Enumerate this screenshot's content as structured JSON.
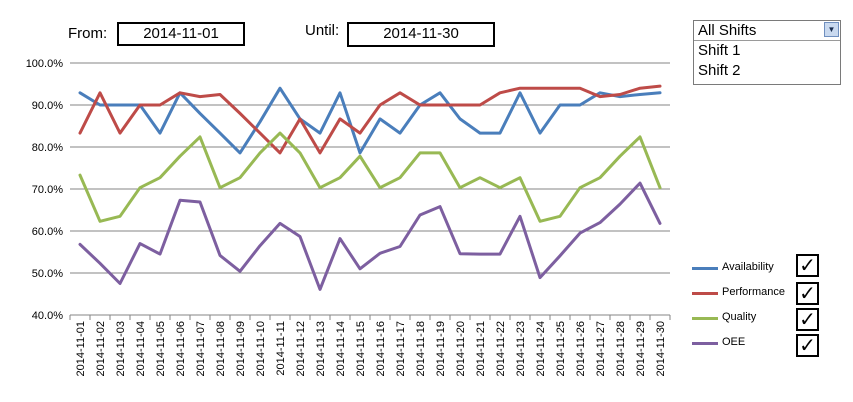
{
  "filters": {
    "from_label": "From:",
    "from_value": "2014-11-01",
    "until_label": "Until:",
    "until_value": "2014-11-30"
  },
  "shift_selector": {
    "selected": "All Shifts",
    "options": [
      "Shift 1",
      "Shift 2"
    ]
  },
  "checkbox_mark": "✓",
  "chart_data": {
    "type": "line",
    "title": "",
    "xlabel": "",
    "ylabel": "",
    "ylim": [
      40,
      100
    ],
    "yticks": [
      40,
      50,
      60,
      70,
      80,
      90,
      100
    ],
    "ytick_labels": [
      "40.0%",
      "50.0%",
      "60.0%",
      "70.0%",
      "80.0%",
      "90.0%",
      "100.0%"
    ],
    "grid": true,
    "legend_position": "right",
    "categories": [
      "2014-11-01",
      "2014-11-02",
      "2014-11-03",
      "2014-11-04",
      "2014-11-05",
      "2014-11-06",
      "2014-11-07",
      "2014-11-08",
      "2014-11-09",
      "2014-11-10",
      "2014-11-11",
      "2014-11-12",
      "2014-11-13",
      "2014-11-14",
      "2014-11-15",
      "2014-11-16",
      "2014-11-17",
      "2014-11-18",
      "2014-11-19",
      "2014-11-20",
      "2014-11-21",
      "2014-11-22",
      "2014-11-23",
      "2014-11-24",
      "2014-11-25",
      "2014-11-26",
      "2014-11-27",
      "2014-11-28",
      "2014-11-29",
      "2014-11-30"
    ],
    "series": [
      {
        "name": "Availability",
        "color": "#4a7ebb",
        "values": [
          92.9,
          90.0,
          90.0,
          90.0,
          83.3,
          92.9,
          88.0,
          83.3,
          78.6,
          86.0,
          94.0,
          86.7,
          83.3,
          92.9,
          78.6,
          86.7,
          83.3,
          90.0,
          92.9,
          86.7,
          83.3,
          83.3,
          92.9,
          83.3,
          90.0,
          90.0,
          92.9,
          92.0,
          92.5,
          92.9
        ]
      },
      {
        "name": "Performance",
        "color": "#be4b48",
        "values": [
          83.3,
          92.9,
          83.3,
          90.0,
          90.0,
          92.9,
          92.0,
          92.5,
          88.0,
          83.3,
          78.6,
          86.7,
          78.6,
          86.7,
          83.3,
          90.0,
          92.9,
          90.0,
          90.0,
          90.0,
          90.0,
          92.9,
          94.0,
          94.0,
          94.0,
          94.0,
          92.0,
          92.5,
          94.0,
          94.5
        ]
      },
      {
        "name": "Quality",
        "color": "#98b954",
        "values": [
          73.3,
          62.3,
          63.5,
          70.3,
          72.7,
          77.8,
          82.4,
          70.3,
          72.7,
          78.6,
          83.3,
          78.6,
          70.3,
          72.7,
          77.8,
          70.3,
          72.7,
          78.6,
          78.6,
          70.3,
          72.7,
          70.3,
          72.7,
          62.3,
          63.5,
          70.3,
          72.7,
          77.8,
          82.4,
          70.3
        ]
      },
      {
        "name": "OEE",
        "color": "#7d5fa0",
        "values": [
          56.8,
          52.3,
          47.5,
          57.0,
          54.5,
          67.3,
          66.9,
          54.2,
          50.4,
          56.5,
          61.8,
          58.7,
          46.1,
          58.2,
          51.0,
          54.7,
          56.3,
          63.8,
          65.8,
          54.6,
          54.5,
          54.5,
          63.5,
          48.9,
          54.1,
          59.5,
          62.0,
          66.4,
          71.4,
          61.8
        ]
      }
    ]
  }
}
